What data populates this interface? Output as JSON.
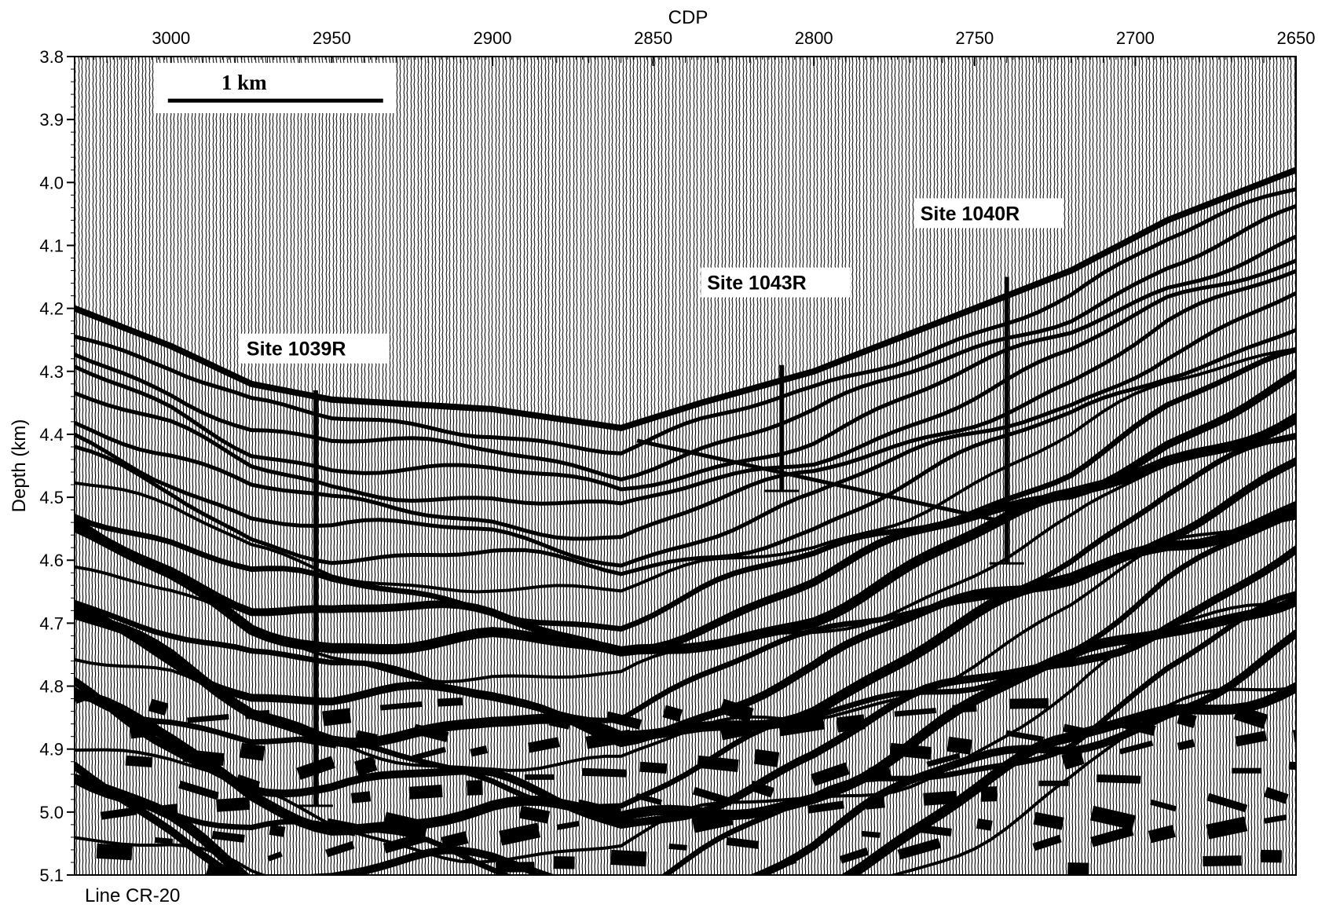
{
  "chart_data": {
    "type": "seismic-section",
    "title": "",
    "xlabel": "CDP",
    "ylabel": "Depth (km)",
    "xlim": [
      3030,
      2650
    ],
    "ylim": [
      3.8,
      5.1
    ],
    "x_reversed": true,
    "y_inverted": true,
    "x_ticks": [
      3000,
      2950,
      2900,
      2850,
      2800,
      2750,
      2700,
      2650
    ],
    "y_ticks": [
      3.8,
      3.9,
      4.0,
      4.1,
      4.2,
      4.3,
      4.4,
      4.5,
      4.6,
      4.7,
      4.8,
      4.9,
      5.0,
      5.1
    ],
    "line_name": "Line CR-20",
    "scale_bar": {
      "label": "1 km",
      "cdp_start": 3000,
      "cdp_end": 2935,
      "depth": 3.87
    },
    "seafloor": [
      {
        "cdp": 3030,
        "depth": 4.2
      },
      {
        "cdp": 3000,
        "depth": 4.26
      },
      {
        "cdp": 2975,
        "depth": 4.32
      },
      {
        "cdp": 2950,
        "depth": 4.345
      },
      {
        "cdp": 2900,
        "depth": 4.36
      },
      {
        "cdp": 2860,
        "depth": 4.39
      },
      {
        "cdp": 2835,
        "depth": 4.35
      },
      {
        "cdp": 2800,
        "depth": 4.3
      },
      {
        "cdp": 2760,
        "depth": 4.22
      },
      {
        "cdp": 2720,
        "depth": 4.14
      },
      {
        "cdp": 2690,
        "depth": 4.06
      },
      {
        "cdp": 2650,
        "depth": 3.98
      }
    ],
    "sites": [
      {
        "name": "Site 1039R",
        "cdp": 2955,
        "top": 4.33,
        "bottom": 4.99
      },
      {
        "name": "Site 1043R",
        "cdp": 2810,
        "top": 4.29,
        "bottom": 4.49
      },
      {
        "name": "Site 1040R",
        "cdp": 2740,
        "top": 4.15,
        "bottom": 4.605
      }
    ]
  }
}
